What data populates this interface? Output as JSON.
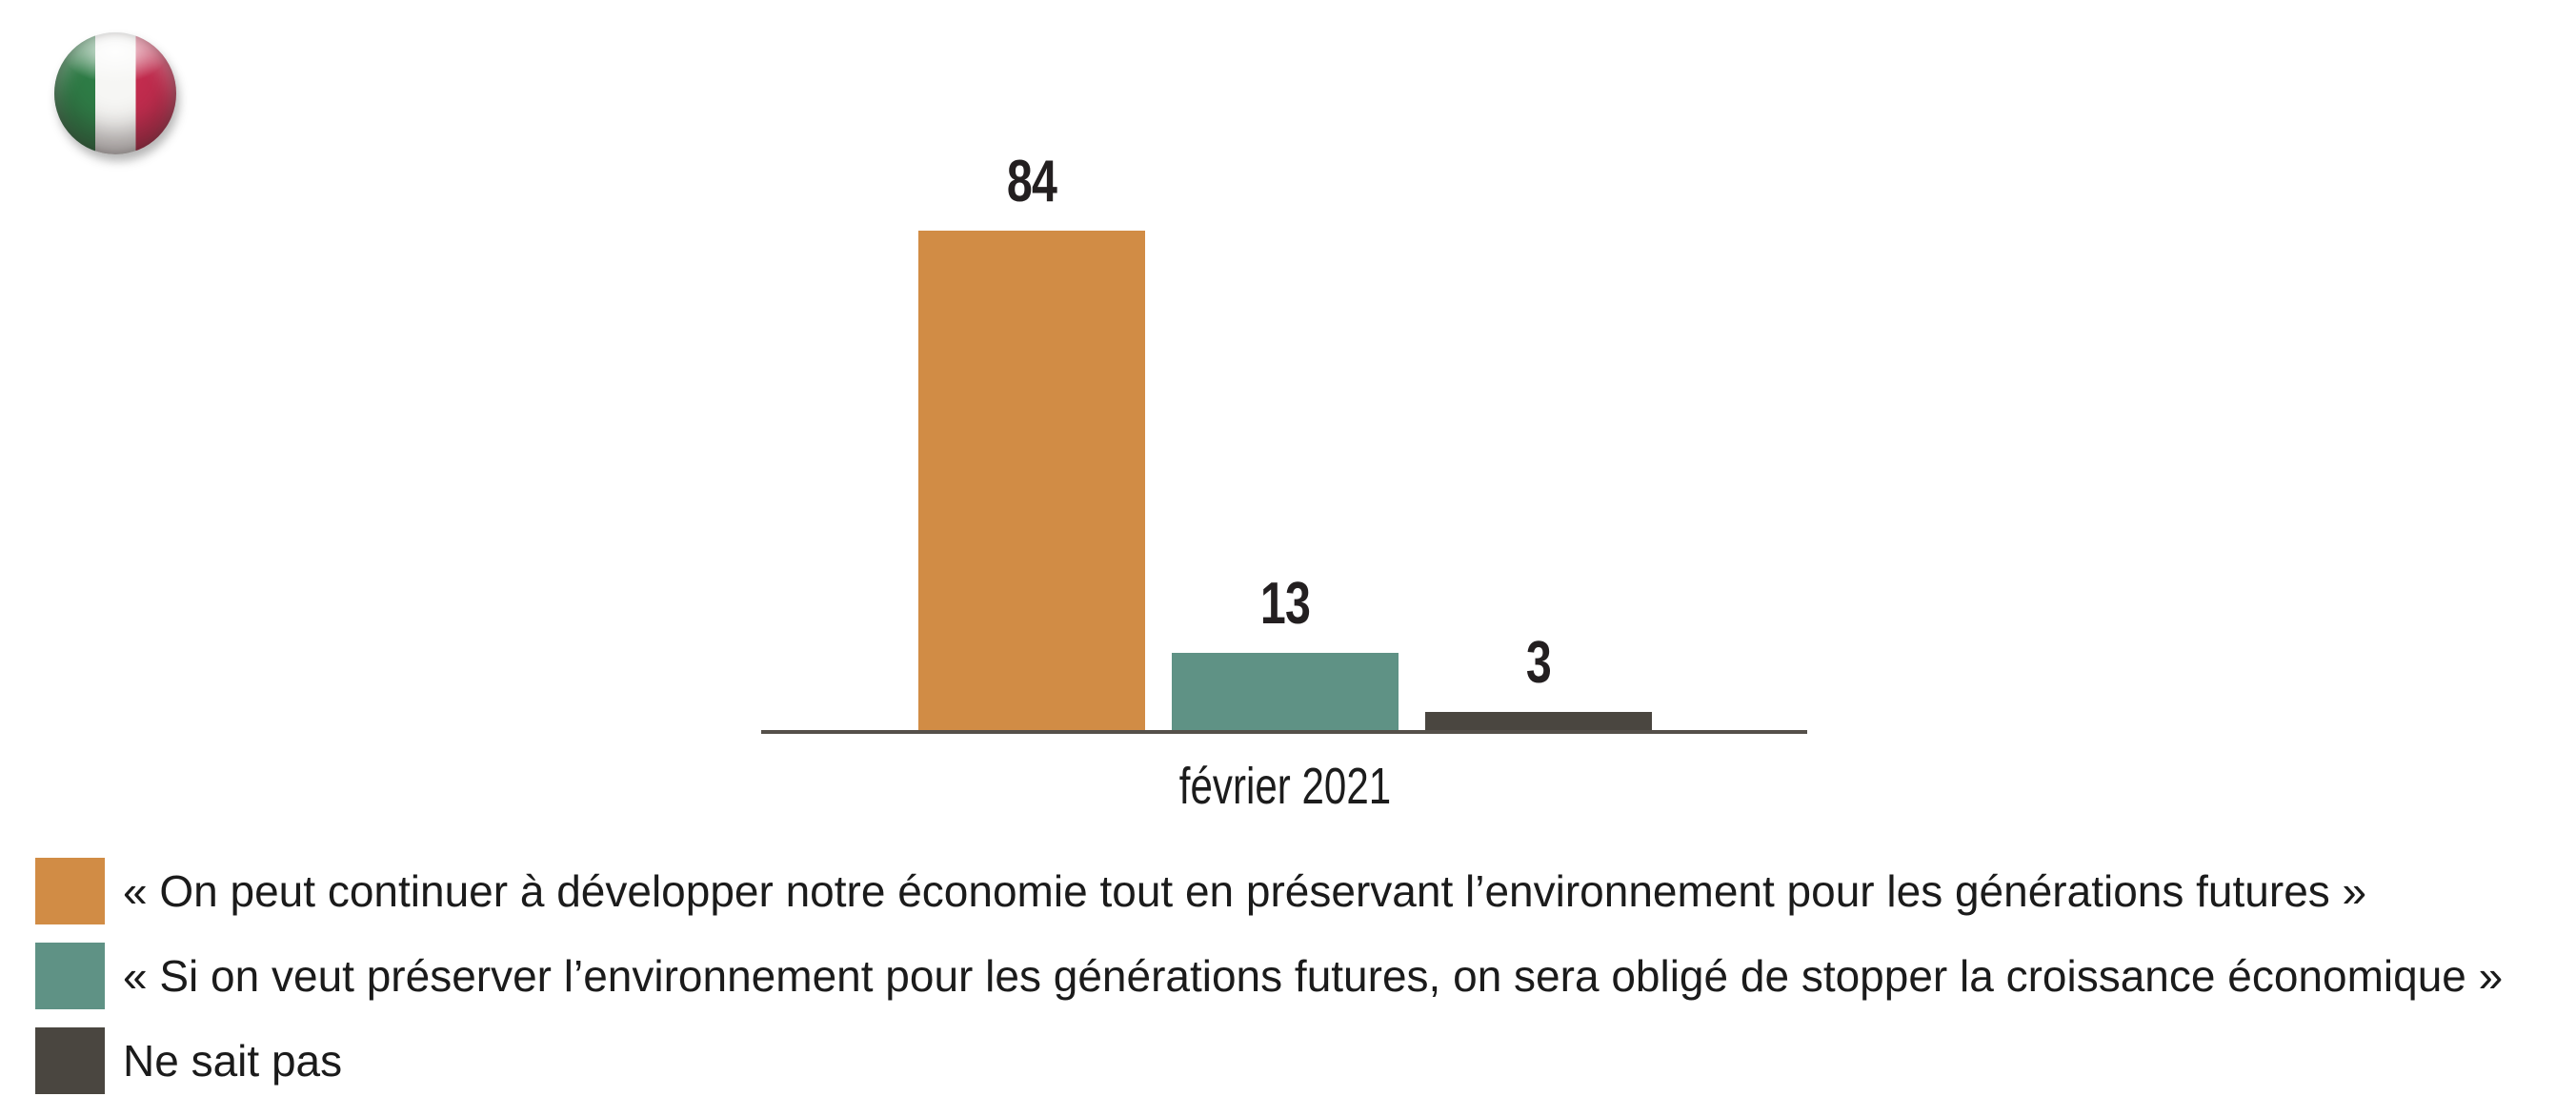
{
  "flag": {
    "icon": "italy-flag-icon",
    "country": "Italy",
    "colors": {
      "green": "#2e7c46",
      "white": "#f6f6f4",
      "red": "#c22c4e"
    }
  },
  "chart_data": {
    "type": "bar",
    "categories": [
      "février 2021"
    ],
    "series": [
      {
        "name": "« On peut continuer à développer notre économie tout en préservant l’environnement pour les générations futures »",
        "values": [
          84
        ],
        "color": "#d18c45"
      },
      {
        "name": "« Si on veut préserver l’environnement pour les générations futures, on sera obligé de stopper la croissance économique »",
        "values": [
          13
        ],
        "color": "#5f9285"
      },
      {
        "name": "Ne sait pas",
        "values": [
          3
        ],
        "color": "#4a4640"
      }
    ],
    "ylim": [
      0,
      100
    ],
    "xlabel": "",
    "ylabel": "",
    "grid": false,
    "value_labels": true,
    "legend_position": "bottom-left",
    "axis_color": "#55504a"
  }
}
